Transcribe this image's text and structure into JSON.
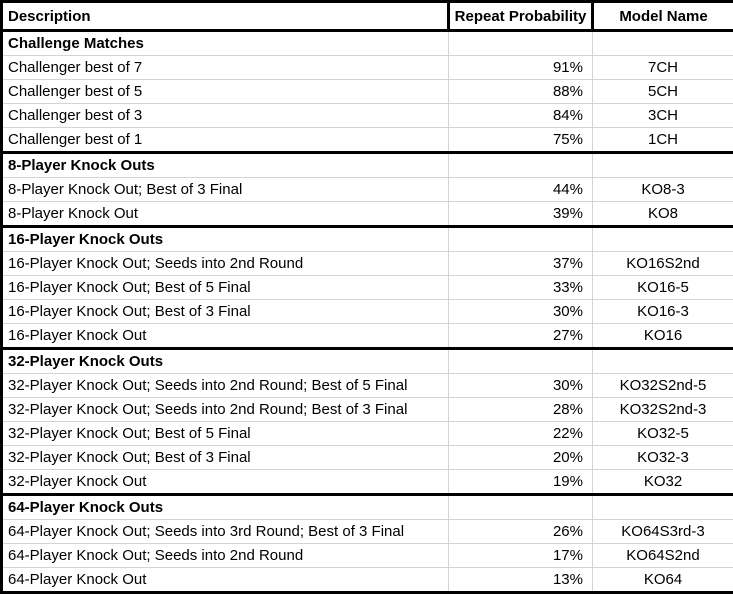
{
  "colors": {
    "border": "#000000",
    "gridline": "#d4d4d4",
    "background": "#ffffff",
    "text": "#000000"
  },
  "chart_data": {
    "type": "table",
    "columns": [
      {
        "label": "Description"
      },
      {
        "label": "Repeat Probability"
      },
      {
        "label": "Model Name"
      }
    ],
    "sections": [
      {
        "title": "Challenge Matches",
        "rows": [
          {
            "description": "Challenger best of 7",
            "probability": "91%",
            "model": "7CH"
          },
          {
            "description": "Challenger best of 5",
            "probability": "88%",
            "model": "5CH"
          },
          {
            "description": "Challenger best of 3",
            "probability": "84%",
            "model": "3CH"
          },
          {
            "description": "Challenger best of 1",
            "probability": "75%",
            "model": "1CH"
          }
        ]
      },
      {
        "title": "8-Player Knock Outs",
        "rows": [
          {
            "description": "8-Player Knock Out; Best of 3 Final",
            "probability": "44%",
            "model": "KO8-3"
          },
          {
            "description": "8-Player Knock Out",
            "probability": "39%",
            "model": "KO8"
          }
        ]
      },
      {
        "title": "16-Player Knock Outs",
        "rows": [
          {
            "description": "16-Player Knock Out; Seeds into 2nd Round",
            "probability": "37%",
            "model": "KO16S2nd"
          },
          {
            "description": "16-Player Knock Out; Best of 5 Final",
            "probability": "33%",
            "model": "KO16-5"
          },
          {
            "description": "16-Player Knock Out; Best of 3 Final",
            "probability": "30%",
            "model": "KO16-3"
          },
          {
            "description": "16-Player Knock Out",
            "probability": "27%",
            "model": "KO16"
          }
        ]
      },
      {
        "title": "32-Player Knock Outs",
        "rows": [
          {
            "description": "32-Player Knock Out; Seeds into 2nd Round; Best of 5 Final",
            "probability": "30%",
            "model": "KO32S2nd-5"
          },
          {
            "description": "32-Player Knock Out; Seeds into 2nd Round; Best of 3 Final",
            "probability": "28%",
            "model": "KO32S2nd-3"
          },
          {
            "description": "32-Player Knock Out; Best of 5 Final",
            "probability": "22%",
            "model": "KO32-5"
          },
          {
            "description": "32-Player Knock Out; Best of 3 Final",
            "probability": "20%",
            "model": "KO32-3"
          },
          {
            "description": "32-Player Knock Out",
            "probability": "19%",
            "model": "KO32"
          }
        ]
      },
      {
        "title": "64-Player Knock Outs",
        "rows": [
          {
            "description": "64-Player Knock Out; Seeds into 3rd Round; Best of 3 Final",
            "probability": "26%",
            "model": "KO64S3rd-3"
          },
          {
            "description": "64-Player Knock Out; Seeds into 2nd Round",
            "probability": "17%",
            "model": "KO64S2nd"
          },
          {
            "description": "64-Player Knock Out",
            "probability": "13%",
            "model": "KO64"
          }
        ]
      }
    ]
  }
}
